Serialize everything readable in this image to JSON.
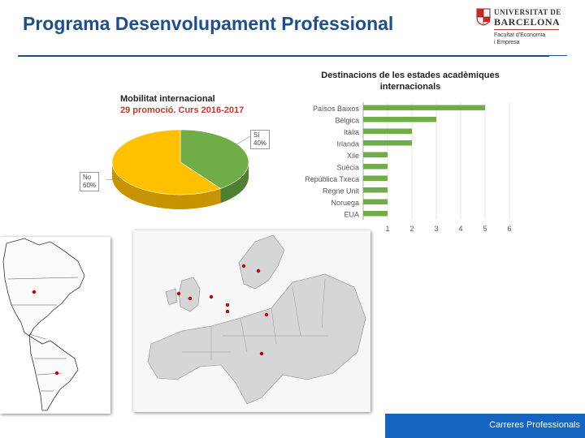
{
  "slide": {
    "title": "Programa Desenvolupament Professional",
    "footer": "Carreres Professionals"
  },
  "logo": {
    "name_line1": "UNIVERSITAT DE",
    "name_line2": "BARCELONA",
    "faculty_line1": "Facultat d'Economia",
    "faculty_line2": "i Empresa"
  },
  "colors": {
    "accent": "#1f4e8c",
    "footer_bg": "#1565c0",
    "pie_si": "#70ad47",
    "pie_no": "#ffc000",
    "bar": "#70ad47",
    "map_marker": "#c00000"
  },
  "chart_data": [
    {
      "type": "pie",
      "title": "Mobilitat internacional",
      "subtitle": "29 promoció. Curs 2016-2017",
      "slices": [
        {
          "label": "Sí",
          "value": 40,
          "value_label": "40%"
        },
        {
          "label": "No",
          "value": 60,
          "value_label": "60%"
        }
      ],
      "style": "3d"
    },
    {
      "type": "bar",
      "orientation": "horizontal",
      "title": "Destinacions de les estades acadèmiques internacionals",
      "categories": [
        "Països Baixos",
        "Bèlgica",
        "Itàlia",
        "Irlanda",
        "Xile",
        "Suècia",
        "República Txeca",
        "Regne Unit",
        "Noruega",
        "EUA"
      ],
      "values": [
        5,
        3,
        2,
        2,
        1,
        1,
        1,
        1,
        1,
        1
      ],
      "xlim": [
        0,
        6
      ],
      "xticks": [
        "1",
        "2",
        "3",
        "4",
        "5",
        "6"
      ],
      "grid": true
    }
  ]
}
